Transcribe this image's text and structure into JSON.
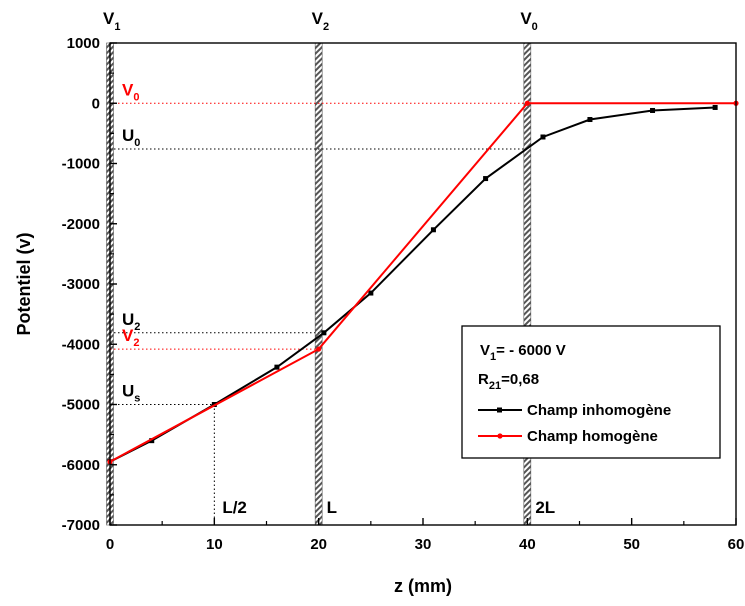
{
  "chart_data": {
    "type": "line",
    "xlabel": "z (mm)",
    "ylabel": "Potentiel (v)",
    "xlim": [
      0,
      60
    ],
    "ylim": [
      -7000,
      1000
    ],
    "x_ticks": [
      0,
      10,
      20,
      30,
      40,
      50,
      60
    ],
    "y_ticks": [
      1000,
      0,
      -1000,
      -2000,
      -3000,
      -4000,
      -5000,
      -6000,
      -7000
    ],
    "series": [
      {
        "name": "Champ inhomogène",
        "color": "#000000",
        "marker": "square",
        "x": [
          0,
          4,
          10,
          16,
          20.5,
          25,
          31,
          36,
          41.5,
          46,
          52,
          58
        ],
        "y": [
          -5950,
          -5600,
          -5000,
          -4380,
          -3810,
          -3150,
          -2100,
          -1250,
          -560,
          -270,
          -120,
          -70
        ]
      },
      {
        "name": "Champ homogène",
        "color": "#ff0000",
        "marker": "circle",
        "x": [
          0,
          20,
          40,
          60
        ],
        "y": [
          -5950,
          -4080,
          0,
          0
        ]
      }
    ],
    "electrodes": [
      {
        "x": 0,
        "label_main": "V",
        "label_sub": "1"
      },
      {
        "x": 20,
        "label_main": "V",
        "label_sub": "2"
      },
      {
        "x": 40,
        "label_main": "V",
        "label_sub": "0"
      }
    ],
    "position_labels": [
      {
        "x": 10,
        "text": "L/2"
      },
      {
        "x": 20,
        "text": "L"
      },
      {
        "x": 40,
        "text": "2L"
      }
    ],
    "potential_markers": [
      {
        "main": "V",
        "sub": "0",
        "y": 0,
        "x_end": 40,
        "color": "#ff0000"
      },
      {
        "main": "U",
        "sub": "0",
        "y": -760,
        "x_end": 40,
        "color": "#000000"
      },
      {
        "main": "U",
        "sub": "2",
        "y": -3810,
        "x_end": 20,
        "color": "#000000"
      },
      {
        "main": "V",
        "sub": "2",
        "y": -4080,
        "x_end": 20,
        "color": "#ff0000"
      },
      {
        "main": "U",
        "sub": "s",
        "y": -5000,
        "x_end": 10,
        "color": "#000000"
      }
    ],
    "legend": {
      "placement": "bottom-right",
      "param1_main": "V",
      "param1_sub": "1",
      "param1_rest": "= - 6000 V",
      "param2_main": "R",
      "param2_sub": "21",
      "param2_rest": "=0,68"
    }
  }
}
